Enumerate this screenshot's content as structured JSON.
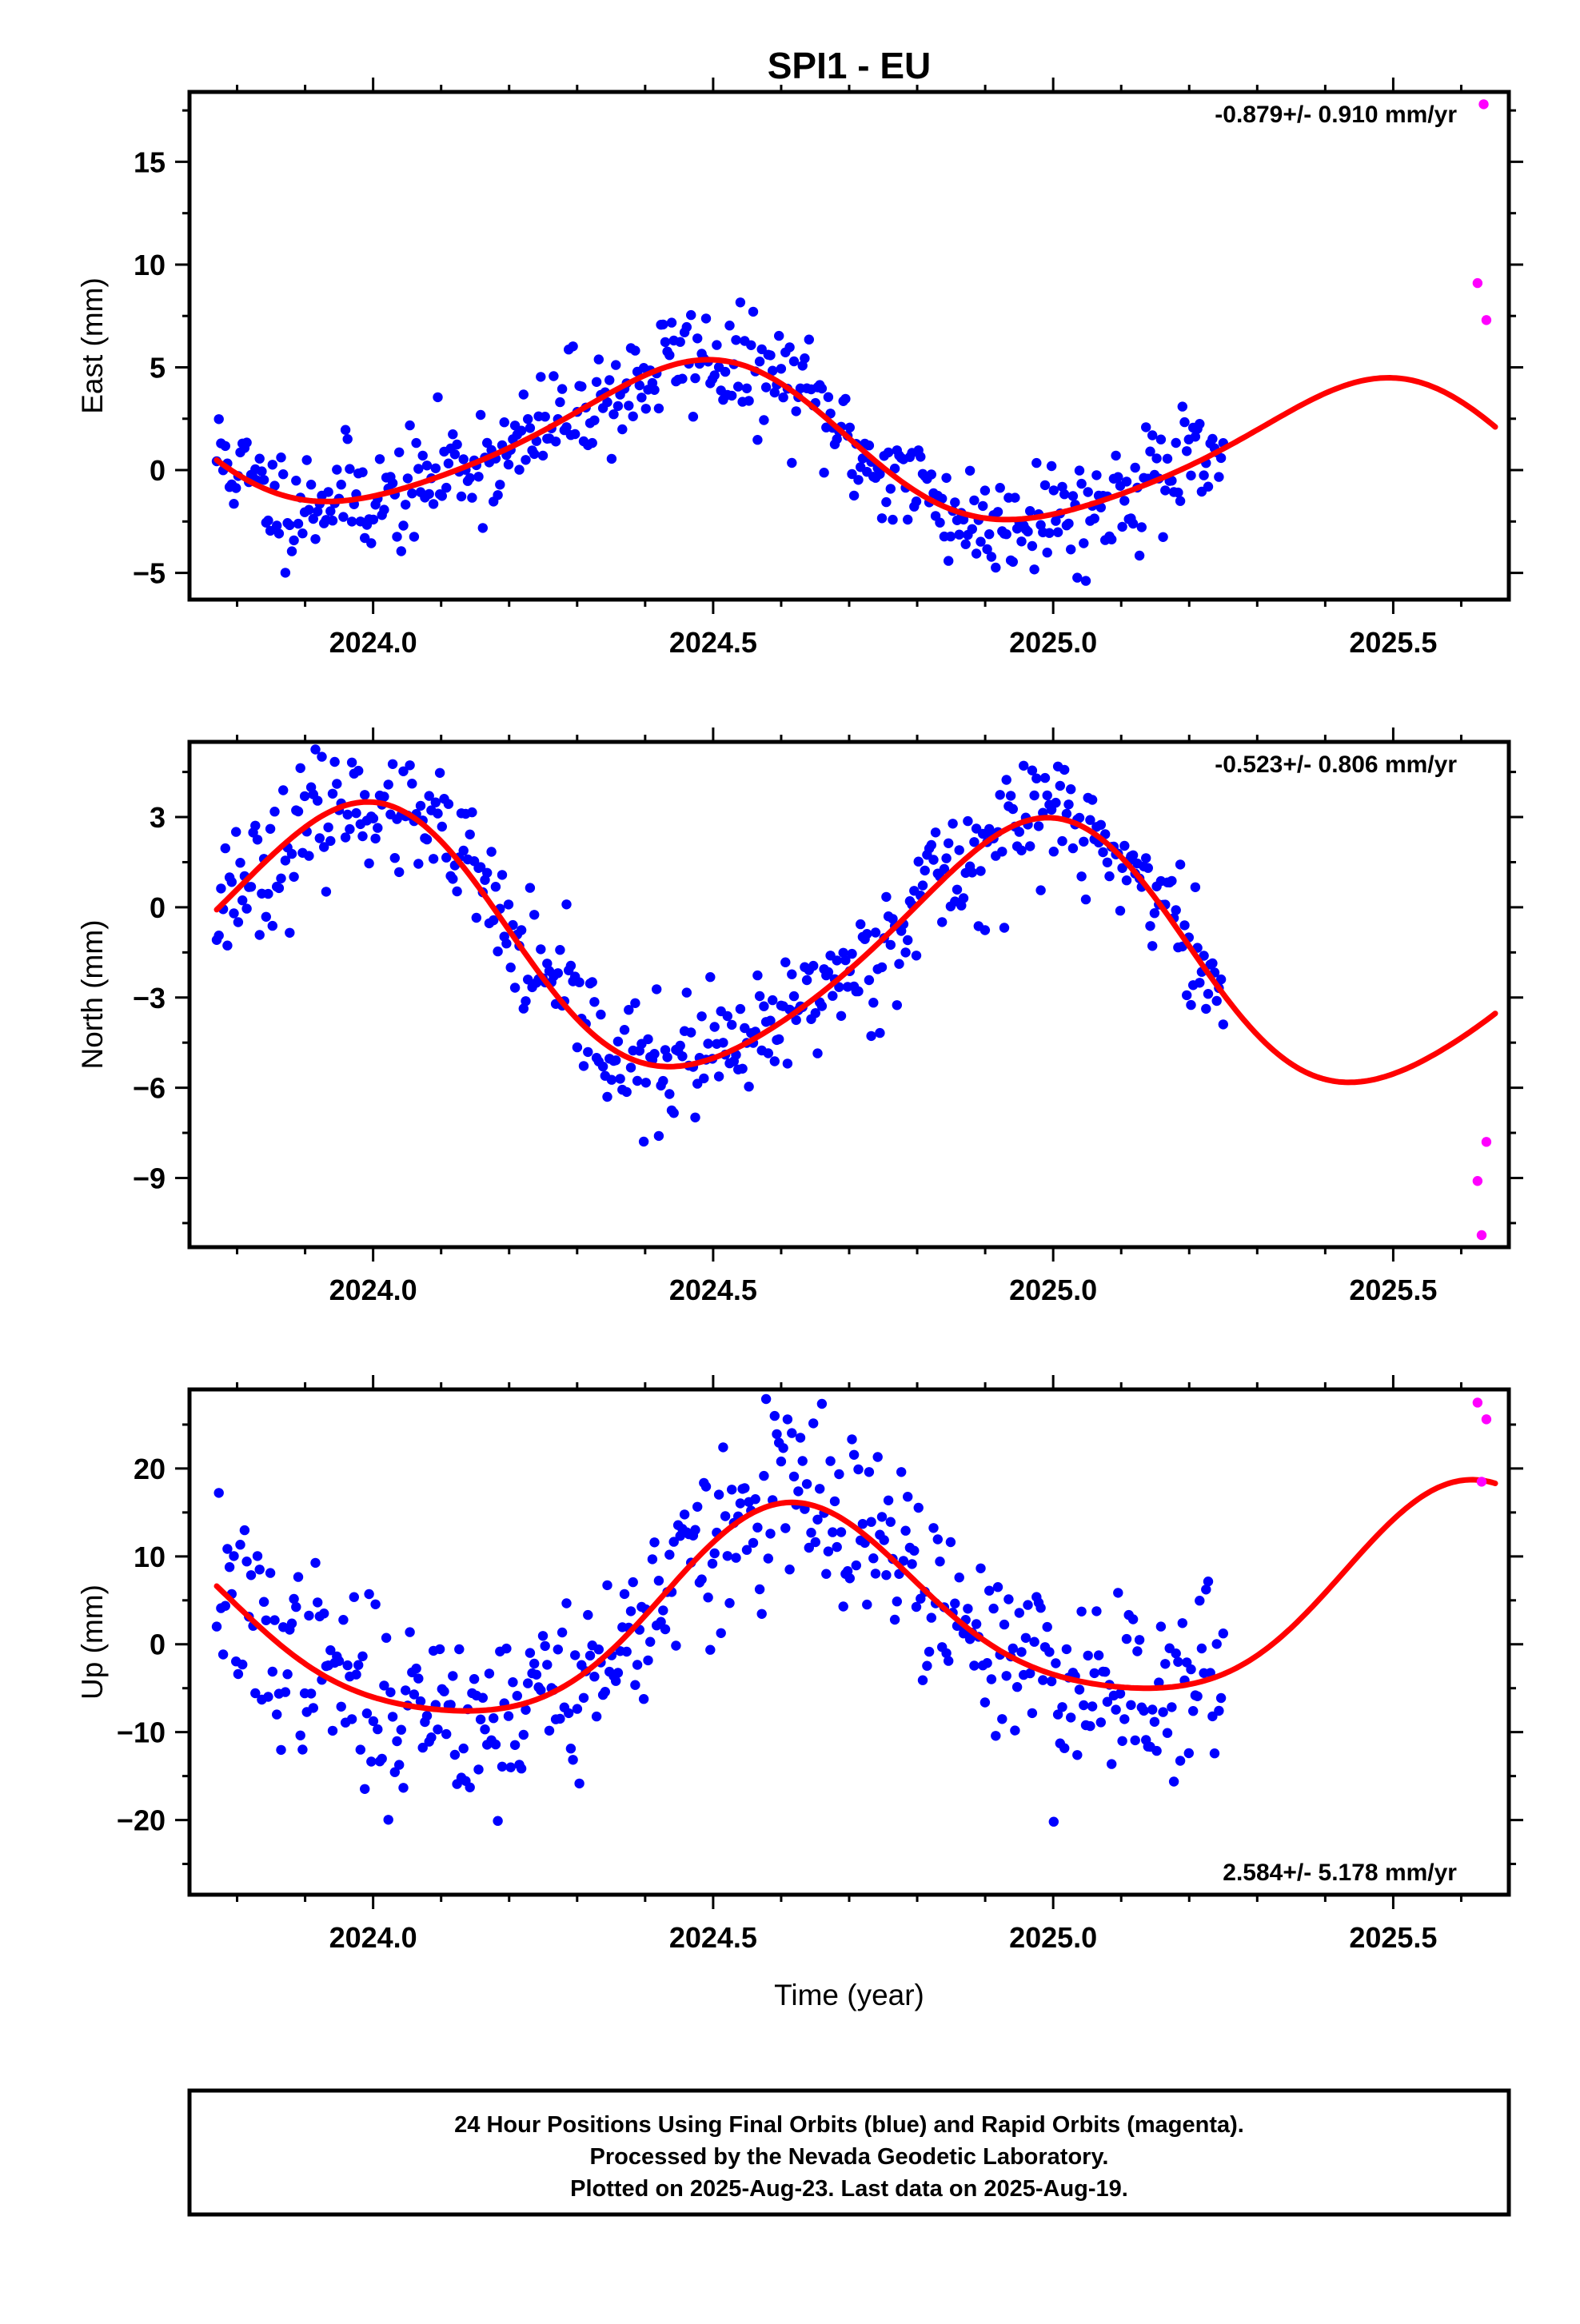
{
  "title": "SPI1 - EU",
  "x_axis_label": "Time (year)",
  "colors": {
    "final": "#0000ff",
    "rapid": "#ff00ff",
    "model": "#ff0000",
    "frame": "#000000"
  },
  "footer": {
    "line1": "24 Hour Positions Using Final Orbits (blue) and Rapid Orbits (magenta).",
    "line2": "Processed by the Nevada Geodetic Laboratory.",
    "line3": "Plotted on 2025-Aug-23. Last data on 2025-Aug-19."
  },
  "chart_data": [
    {
      "type": "scatter",
      "ylabel": "East (mm)",
      "rate": "-0.879+/- 0.910 mm/yr",
      "rate_position": "top-right",
      "xlim": [
        2023.73,
        2025.67
      ],
      "ylim": [
        -6.3,
        18.4
      ],
      "xticks": [
        2024.0,
        2024.5,
        2025.0,
        2025.5
      ],
      "xticklabels": [
        "2024.0",
        "2024.5",
        "2025.0",
        "2025.5"
      ],
      "yticks": [
        -5,
        0,
        5,
        10,
        15
      ],
      "yticklabels": [
        "−5",
        "0",
        "5",
        "10",
        "15"
      ],
      "model": {
        "x_start": 2023.77,
        "x_end": 2025.65,
        "offset": 1.25,
        "trend": -0.879,
        "t_ref": 2024.7,
        "annual_amp": 3.6,
        "annual_peak": 2024.47,
        "semi_amp": 0.5,
        "semi_peak": 2024.55
      },
      "final_series": {
        "x_start": 2023.77,
        "x_end": 2025.25,
        "count": 470,
        "noise": 1.35,
        "seed": 11
      },
      "rapid_points": [
        {
          "x": 2025.633,
          "y": 17.8
        },
        {
          "x": 2025.624,
          "y": 9.1
        },
        {
          "x": 2025.637,
          "y": 7.3
        }
      ]
    },
    {
      "type": "scatter",
      "ylabel": "North (mm)",
      "rate": "-0.523+/- 0.806 mm/yr",
      "rate_position": "top-right",
      "xlim": [
        2023.73,
        2025.67
      ],
      "ylim": [
        -11.3,
        5.5
      ],
      "xticks": [
        2024.0,
        2024.5,
        2025.0,
        2025.5
      ],
      "xticklabels": [
        "2024.0",
        "2024.5",
        "2025.0",
        "2025.5"
      ],
      "yticks": [
        -9,
        -6,
        -3,
        0,
        3
      ],
      "yticklabels": [
        "−9",
        "−6",
        "−3",
        "0",
        "3"
      ],
      "model": {
        "x_start": 2023.77,
        "x_end": 2025.65,
        "offset": -1.4,
        "trend": -0.523,
        "t_ref": 2024.7,
        "annual_amp": 4.2,
        "annual_peak": 2024.97,
        "semi_amp": 0.5,
        "semi_peak": 2024.05
      },
      "final_series": {
        "x_start": 2023.77,
        "x_end": 2025.25,
        "count": 470,
        "noise": 1.05,
        "seed": 23
      },
      "rapid_points": [
        {
          "x": 2025.637,
          "y": -7.8
        },
        {
          "x": 2025.624,
          "y": -9.1
        },
        {
          "x": 2025.63,
          "y": -10.9
        }
      ]
    },
    {
      "type": "scatter",
      "ylabel": "Up (mm)",
      "rate": "2.584+/- 5.178 mm/yr",
      "rate_position": "bottom-right",
      "xlim": [
        2023.73,
        2025.67
      ],
      "ylim": [
        -28.5,
        29.0
      ],
      "xticks": [
        2024.0,
        2024.5,
        2025.0,
        2025.5
      ],
      "xticklabels": [
        "2024.0",
        "2024.5",
        "2025.0",
        "2025.5"
      ],
      "yticks": [
        -20,
        -10,
        0,
        10,
        20
      ],
      "yticklabels": [
        "−20",
        "−10",
        "0",
        "10",
        "20"
      ],
      "model": {
        "x_start": 2023.77,
        "x_end": 2025.65,
        "offset": 3.4,
        "trend": 2.584,
        "t_ref": 2024.7,
        "annual_amp": 11.2,
        "annual_peak": 2024.62,
        "semi_amp": 1.8,
        "semi_peak": 2024.6
      },
      "final_series": {
        "x_start": 2023.77,
        "x_end": 2025.25,
        "count": 470,
        "noise": 5.2,
        "seed": 37
      },
      "rapid_points": [
        {
          "x": 2025.624,
          "y": 27.5
        },
        {
          "x": 2025.637,
          "y": 25.6
        },
        {
          "x": 2025.63,
          "y": 18.5
        }
      ]
    }
  ]
}
